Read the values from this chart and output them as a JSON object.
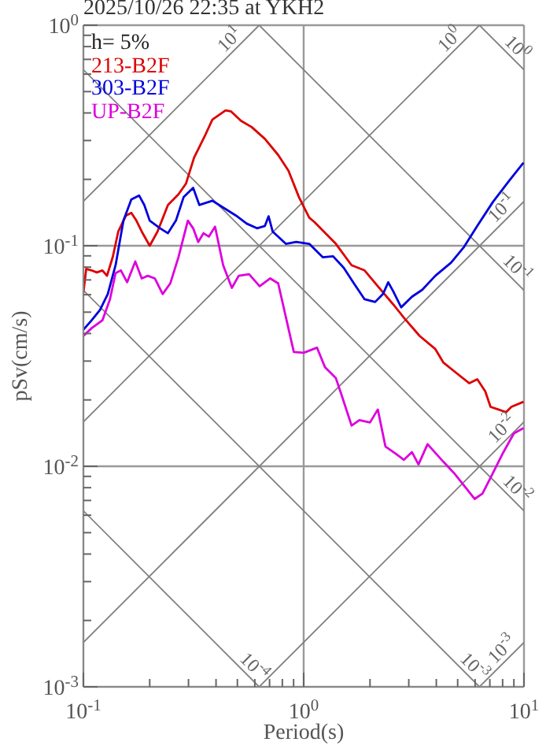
{
  "chart_data": {
    "type": "line",
    "title": "2025/10/26 22:35 at YKH2",
    "xlabel": "Period(s)",
    "ylabel": "pSv(cm/s)",
    "annotations": [
      "h= 5%",
      {
        "text": "10$^{1}$",
        "x": 0.5,
        "y": 0.796
      },
      {
        "text": "10$^{0}$",
        "x": 5,
        "y": 0.796
      },
      {
        "text": "10$^{0}$",
        "x": 10,
        "y": 0.628
      },
      {
        "text": "10$^{-1}$",
        "x": 10,
        "y": 0.159
      },
      {
        "text": "10$^{-1}$",
        "x": 10,
        "y": 0.0628
      },
      {
        "text": "10$^{-2}$",
        "x": 10,
        "y": 0.0159
      },
      {
        "text": "10$^{-2}$",
        "x": 10,
        "y": 0.00628
      },
      {
        "text": "10$^{-3}$",
        "x": 5.5,
        "y": 0.001142
      },
      {
        "text": "10$^{-3}$",
        "x": 10,
        "y": 0.00159
      },
      {
        "text": "10$^{-4}$",
        "x": 0.55,
        "y": 0.001142
      }
    ],
    "series": [
      {
        "color": "#808080",
        "x": [
          0.1,
          0.628
        ],
        "values": [
          0.159,
          1
        ]
      },
      {
        "color": "#808080",
        "x": [
          0.1,
          6.28
        ],
        "values": [
          0.0159,
          1
        ]
      },
      {
        "color": "#808080",
        "x": [
          0.1,
          10
        ],
        "values": [
          0.00159,
          0.159
        ]
      },
      {
        "color": "#808080",
        "x": [
          0.628,
          10
        ],
        "values": [
          0.001,
          0.0159
        ]
      },
      {
        "color": "#808080",
        "x": [
          6.28,
          10
        ],
        "values": [
          0.001,
          0.00159
        ]
      },
      {
        "color": "#808080",
        "x": [
          6.28,
          10
        ],
        "values": [
          1,
          0.628
        ]
      },
      {
        "color": "#808080",
        "x": [
          0.628,
          10
        ],
        "values": [
          1,
          0.0628
        ]
      },
      {
        "color": "#808080",
        "x": [
          0.1,
          10
        ],
        "values": [
          0.628,
          0.00628
        ]
      },
      {
        "color": "#808080",
        "x": [
          0.1,
          6.28
        ],
        "values": [
          0.0628,
          0.001
        ]
      },
      {
        "color": "#808080",
        "x": [
          0.1,
          0.628
        ],
        "values": [
          0.00628,
          0.001
        ]
      },
      {
        "name": "213-B2F",
        "color": "#dd0000",
        "x": [
          0.1,
          0.103,
          0.109,
          0.115,
          0.122,
          0.128,
          0.136,
          0.144,
          0.156,
          0.165,
          0.174,
          0.184,
          0.2,
          0.217,
          0.242,
          0.27,
          0.292,
          0.318,
          0.355,
          0.385,
          0.442,
          0.467,
          0.52,
          0.581,
          0.667,
          0.766,
          0.853,
          0.952,
          1.06,
          1.12,
          1.4,
          1.65,
          1.89,
          2.17,
          2.55,
          2.85,
          3.36,
          3.96,
          4.3,
          4.93,
          5.65,
          6.14,
          6.67,
          7.05,
          7.65,
          8.3,
          8.77,
          9.95
        ],
        "values": [
          0.0614,
          0.0785,
          0.0773,
          0.0757,
          0.0773,
          0.0731,
          0.0891,
          0.116,
          0.137,
          0.141,
          0.13,
          0.116,
          0.1,
          0.116,
          0.153,
          0.171,
          0.191,
          0.251,
          0.313,
          0.373,
          0.411,
          0.407,
          0.368,
          0.345,
          0.305,
          0.258,
          0.219,
          0.166,
          0.134,
          0.128,
          0.102,
          0.0816,
          0.0773,
          0.0655,
          0.0542,
          0.0472,
          0.039,
          0.034,
          0.0296,
          0.0265,
          0.0238,
          0.0248,
          0.0219,
          0.0186,
          0.0181,
          0.0176,
          0.0186,
          0.0196
        ]
      },
      {
        "name": "303-B2F",
        "color": "#0000dd",
        "x": [
          0.1,
          0.109,
          0.119,
          0.129,
          0.14,
          0.152,
          0.165,
          0.179,
          0.189,
          0.2,
          0.223,
          0.242,
          0.263,
          0.285,
          0.315,
          0.336,
          0.385,
          0.431,
          0.493,
          0.551,
          0.614,
          0.667,
          0.693,
          0.723,
          0.83,
          0.925,
          1.06,
          1.22,
          1.36,
          1.52,
          1.69,
          1.89,
          2.11,
          2.29,
          2.42,
          2.55,
          2.77,
          3.1,
          3.45,
          3.96,
          4.67,
          5.35,
          6.14,
          7.23,
          8.53,
          9.95
        ],
        "values": [
          0.0416,
          0.0459,
          0.0512,
          0.0604,
          0.0816,
          0.13,
          0.162,
          0.169,
          0.153,
          0.13,
          0.12,
          0.114,
          0.13,
          0.166,
          0.183,
          0.153,
          0.16,
          0.149,
          0.137,
          0.126,
          0.12,
          0.123,
          0.136,
          0.116,
          0.102,
          0.104,
          0.102,
          0.0887,
          0.0896,
          0.0794,
          0.0675,
          0.0572,
          0.0556,
          0.0604,
          0.0683,
          0.0621,
          0.0526,
          0.0587,
          0.0631,
          0.0731,
          0.0839,
          0.0989,
          0.123,
          0.158,
          0.196,
          0.238
        ]
      },
      {
        "name": "UP-B2F",
        "color": "#dd00dd",
        "x": [
          0.1,
          0.109,
          0.122,
          0.132,
          0.14,
          0.148,
          0.158,
          0.172,
          0.184,
          0.196,
          0.211,
          0.229,
          0.248,
          0.27,
          0.298,
          0.315,
          0.332,
          0.351,
          0.371,
          0.396,
          0.431,
          0.472,
          0.507,
          0.565,
          0.631,
          0.705,
          0.766,
          0.902,
          1.0,
          1.15,
          1.25,
          1.4,
          1.48,
          1.65,
          1.79,
          2.0,
          2.17,
          2.35,
          2.62,
          2.85,
          3.1,
          3.32,
          3.65,
          4.3,
          4.8,
          5.35,
          5.97,
          6.48,
          7.05,
          8.07,
          9.0,
          9.95
        ],
        "values": [
          0.039,
          0.0423,
          0.0459,
          0.0572,
          0.0752,
          0.0773,
          0.0683,
          0.0849,
          0.0711,
          0.0731,
          0.0711,
          0.0604,
          0.0675,
          0.0887,
          0.13,
          0.12,
          0.104,
          0.114,
          0.11,
          0.122,
          0.0816,
          0.0644,
          0.0731,
          0.0743,
          0.0655,
          0.0711,
          0.0675,
          0.033,
          0.0327,
          0.0345,
          0.0281,
          0.0251,
          0.0213,
          0.0153,
          0.0162,
          0.0158,
          0.0181,
          0.0123,
          0.0114,
          0.0107,
          0.0116,
          0.0102,
          0.0126,
          0.0105,
          0.00935,
          0.00817,
          0.00711,
          0.00752,
          0.00887,
          0.0116,
          0.0141,
          0.0149
        ]
      }
    ],
    "xlim": [
      0.1,
      10
    ],
    "xticks": [
      {
        "value": 0.1,
        "label": "10$^{-1}$"
      },
      {
        "value": 0.2,
        "label": null
      },
      {
        "value": 0.3,
        "label": null
      },
      {
        "value": 0.4,
        "label": null
      },
      {
        "value": 0.5,
        "label": null
      },
      {
        "value": 0.6,
        "label": null
      },
      {
        "value": 0.7,
        "label": null
      },
      {
        "value": 0.8,
        "label": null
      },
      {
        "value": 0.9,
        "label": null
      },
      {
        "value": 1,
        "label": "10$^{0}$"
      },
      {
        "value": 2,
        "label": null
      },
      {
        "value": 3,
        "label": null
      },
      {
        "value": 4,
        "label": null
      },
      {
        "value": 5,
        "label": null
      },
      {
        "value": 6,
        "label": null
      },
      {
        "value": 7,
        "label": null
      },
      {
        "value": 8,
        "label": null
      },
      {
        "value": 9,
        "label": null
      },
      {
        "value": 10,
        "label": "10$^{1}$"
      }
    ],
    "ylim": [
      0.001,
      1
    ],
    "yticks": [
      {
        "value": 0.001,
        "label": "10$^{-3}$"
      },
      {
        "value": 0.002,
        "label": null
      },
      {
        "value": 0.003,
        "label": null
      },
      {
        "value": 0.004,
        "label": null
      },
      {
        "value": 0.005,
        "label": null
      },
      {
        "value": 0.006,
        "label": null
      },
      {
        "value": 0.007,
        "label": null
      },
      {
        "value": 0.008,
        "label": null
      },
      {
        "value": 0.009,
        "label": null
      },
      {
        "value": 0.01,
        "label": "10$^{-2}$"
      },
      {
        "value": 0.02,
        "label": null
      },
      {
        "value": 0.03,
        "label": null
      },
      {
        "value": 0.04,
        "label": null
      },
      {
        "value": 0.05,
        "label": null
      },
      {
        "value": 0.06,
        "label": null
      },
      {
        "value": 0.07,
        "label": null
      },
      {
        "value": 0.08,
        "label": null
      },
      {
        "value": 0.09,
        "label": null
      },
      {
        "value": 0.1,
        "label": "10$^{-1}$"
      },
      {
        "value": 0.2,
        "label": null
      },
      {
        "value": 0.3,
        "label": null
      },
      {
        "value": 0.4,
        "label": null
      },
      {
        "value": 0.5,
        "label": null
      },
      {
        "value": 0.6,
        "label": null
      },
      {
        "value": 0.7,
        "label": null
      },
      {
        "value": 0.8,
        "label": null
      },
      {
        "value": 0.9,
        "label": null
      },
      {
        "value": 1,
        "label": "10$^{0}$"
      }
    ],
    "log": "xy",
    "grid": true,
    "legend": "top left",
    "marker": "none"
  }
}
